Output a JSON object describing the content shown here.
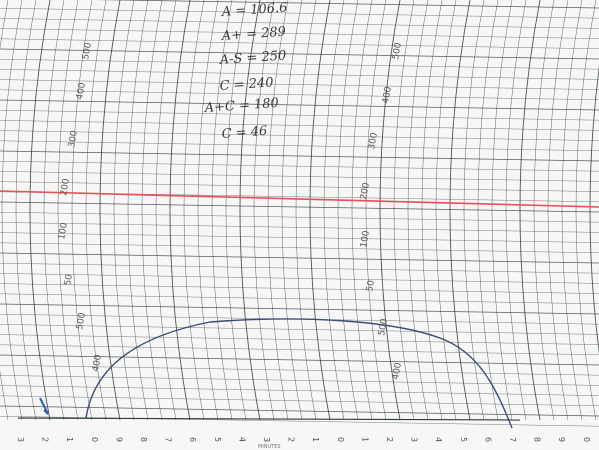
{
  "chart_paper": {
    "curve_labels": [
      "500",
      "400",
      "300",
      "200",
      "100",
      "50"
    ],
    "handwritten_notes": [
      "A = 106.6",
      "A+ = 289",
      "A-S = 250",
      "C = 240",
      "A+C = 180",
      "C = 46"
    ],
    "bottom_scale": [
      "3",
      "2",
      "1",
      "0",
      "9",
      "8",
      "7",
      "6",
      "5",
      "4",
      "3",
      "2",
      "1",
      "0",
      "1",
      "2",
      "3",
      "4",
      "5",
      "6",
      "7",
      "8",
      "9",
      "0"
    ],
    "footer_text": "MINUTES",
    "colors": {
      "paper": "#f7f7f5",
      "grid": "#2f3b38",
      "red_line": "#e8505a",
      "trace": "#3d4c7a",
      "ink": "#2b5fb8"
    }
  }
}
